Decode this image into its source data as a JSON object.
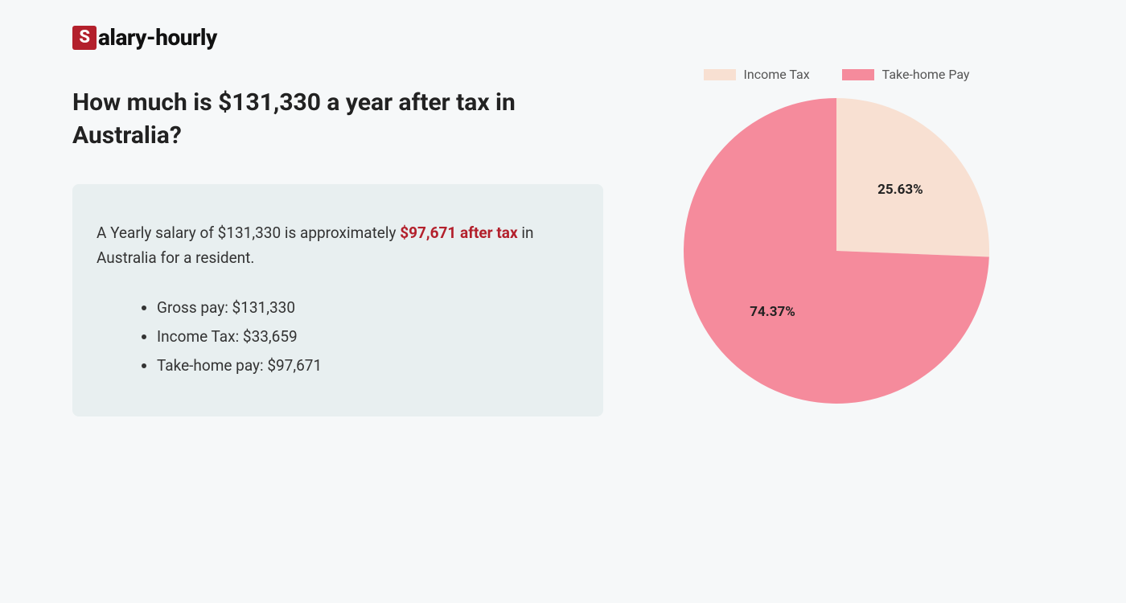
{
  "logo": {
    "s": "S",
    "rest": "alary-hourly"
  },
  "heading": "How much is $131,330 a year after tax in Australia?",
  "summary": {
    "prefix": "A Yearly salary of $131,330 is approximately ",
    "highlight": "$97,671 after tax",
    "suffix": " in Australia for a resident."
  },
  "bullets": [
    "Gross pay: $131,330",
    "Income Tax: $33,659",
    "Take-home pay: $97,671"
  ],
  "chart": {
    "type": "pie",
    "background_color": "#f6f8f9",
    "radius": 190,
    "slices": [
      {
        "label": "Income Tax",
        "pct": 25.63,
        "pct_text": "25.63%",
        "color": "#f8e0d2"
      },
      {
        "label": "Take-home Pay",
        "pct": 74.37,
        "pct_text": "74.37%",
        "color": "#f58b9c"
      }
    ],
    "legend_text_color": "#555555",
    "label_fontsize": 17,
    "label_fontweight": "700",
    "label_color": "#222222",
    "start_angle_deg": -90
  },
  "colors": {
    "page_bg": "#f6f8f9",
    "box_bg": "#e8eff0",
    "accent": "#b3202c",
    "text": "#333333",
    "heading": "#222222"
  }
}
